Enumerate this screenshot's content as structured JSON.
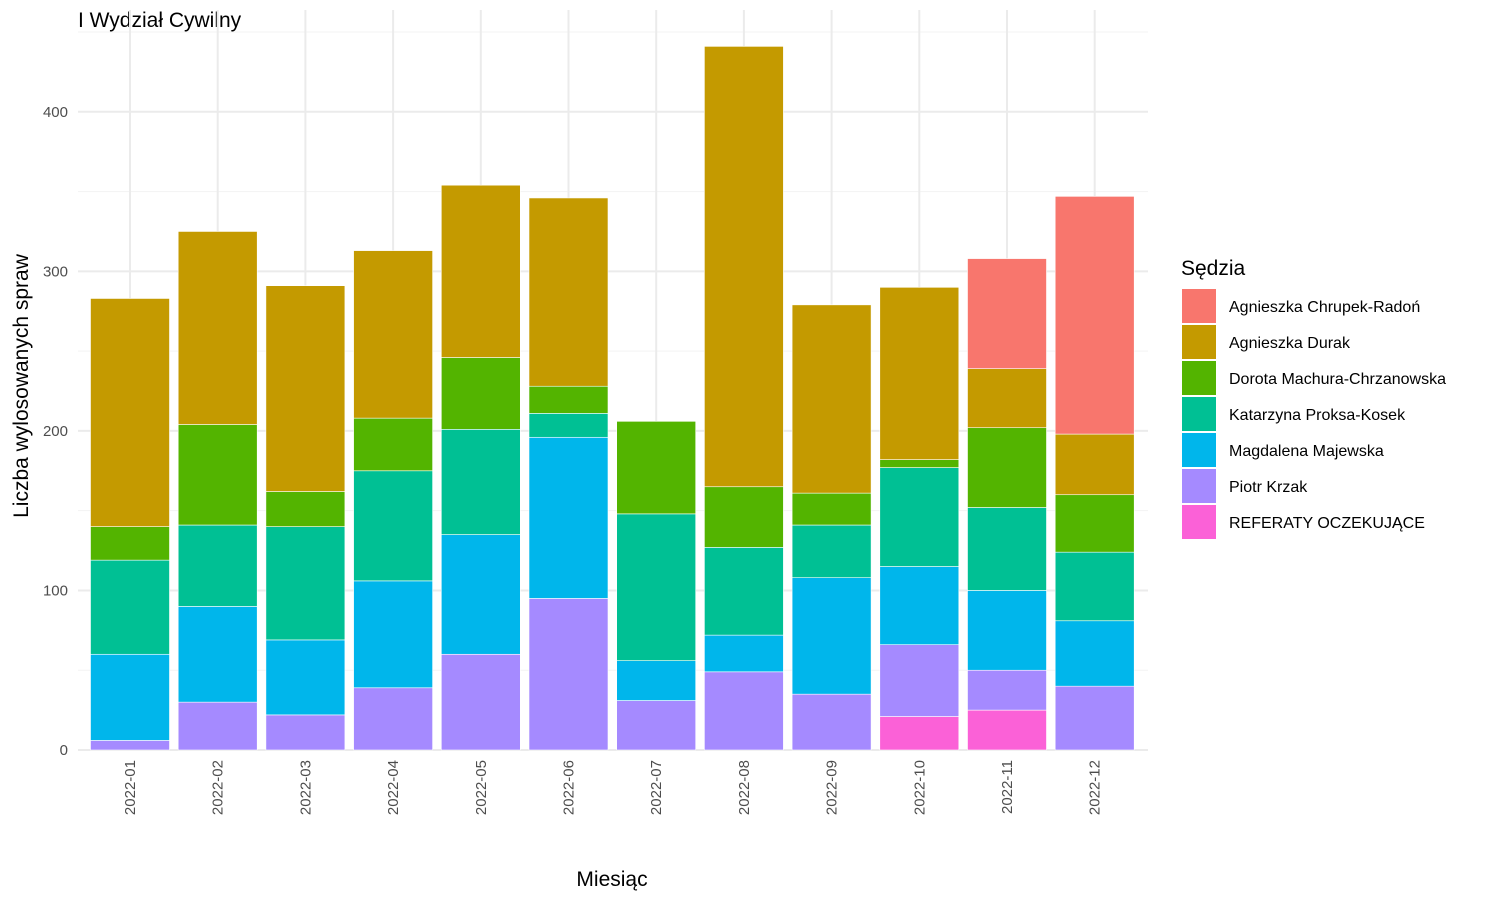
{
  "chart_data": {
    "type": "bar",
    "stacked": true,
    "title": "I Wydział Cywilny",
    "xlabel": "Miesiąc",
    "ylabel": "Liczba wylosowanych spraw",
    "ylim": [
      0,
      460
    ],
    "yticks": [
      0,
      100,
      200,
      300,
      400
    ],
    "grid": true,
    "legend_position": "right",
    "legend_title": "Sędzia",
    "categories": [
      "2022-01",
      "2022-02",
      "2022-03",
      "2022-04",
      "2022-05",
      "2022-06",
      "2022-07",
      "2022-08",
      "2022-09",
      "2022-10",
      "2022-11",
      "2022-12"
    ],
    "series": [
      {
        "name": "Agnieszka Chrupek-Radoń",
        "color": "#F8766D",
        "values": [
          0,
          0,
          0,
          0,
          0,
          0,
          0,
          0,
          0,
          0,
          69,
          149
        ]
      },
      {
        "name": "Agnieszka Durak",
        "color": "#C49A00",
        "values": [
          143,
          121,
          129,
          105,
          108,
          118,
          0,
          276,
          118,
          108,
          37,
          38
        ]
      },
      {
        "name": "Dorota Machura-Chrzanowska",
        "color": "#53B400",
        "values": [
          21,
          63,
          22,
          33,
          45,
          17,
          58,
          38,
          20,
          5,
          50,
          36
        ]
      },
      {
        "name": "Katarzyna Proksa-Kosek",
        "color": "#00C094",
        "values": [
          59,
          51,
          71,
          69,
          66,
          15,
          92,
          55,
          33,
          62,
          52,
          43
        ]
      },
      {
        "name": "Magdalena Majewska",
        "color": "#00B6EB",
        "values": [
          54,
          60,
          47,
          67,
          75,
          101,
          25,
          23,
          73,
          49,
          50,
          41
        ]
      },
      {
        "name": "Piotr Krzak",
        "color": "#A58AFF",
        "values": [
          6,
          30,
          22,
          39,
          60,
          95,
          31,
          49,
          35,
          45,
          25,
          40
        ]
      },
      {
        "name": "REFERATY OCZEKUJĄCE",
        "color": "#FB61D7",
        "values": [
          0,
          0,
          0,
          0,
          0,
          0,
          0,
          0,
          0,
          21,
          25,
          0
        ]
      }
    ]
  }
}
